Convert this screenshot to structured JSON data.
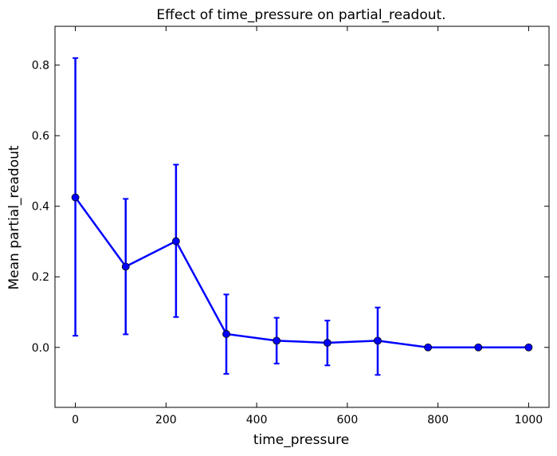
{
  "chart_data": {
    "type": "line",
    "title": "Effect of time_pressure on partial_readout.",
    "xlabel": "time_pressure",
    "ylabel": "Mean partial_readout",
    "xlim": [
      -45,
      1045
    ],
    "ylim": [
      -0.17,
      0.91
    ],
    "xticks": [
      0,
      200,
      400,
      600,
      800,
      1000
    ],
    "xtick_labels": [
      "0",
      "200",
      "400",
      "600",
      "800",
      "1000"
    ],
    "yticks": [
      0.0,
      0.2,
      0.4,
      0.6,
      0.8
    ],
    "ytick_labels": [
      "0.0",
      "0.2",
      "0.4",
      "0.6",
      "0.8"
    ],
    "grid": false,
    "series": [
      {
        "color": "#0000ff",
        "marker": "circle",
        "error_bars": true,
        "points": [
          {
            "x": 0,
            "y": 0.425,
            "err_low": 0.033,
            "err_high": 0.82
          },
          {
            "x": 111,
            "y": 0.229,
            "err_low": 0.037,
            "err_high": 0.421
          },
          {
            "x": 222,
            "y": 0.301,
            "err_low": 0.086,
            "err_high": 0.518
          },
          {
            "x": 333,
            "y": 0.038,
            "err_low": -0.075,
            "err_high": 0.15
          },
          {
            "x": 444,
            "y": 0.019,
            "err_low": -0.046,
            "err_high": 0.084
          },
          {
            "x": 556,
            "y": 0.013,
            "err_low": -0.051,
            "err_high": 0.076
          },
          {
            "x": 667,
            "y": 0.019,
            "err_low": -0.078,
            "err_high": 0.113
          },
          {
            "x": 778,
            "y": 0.0,
            "err_low": 0.0,
            "err_high": 0.0
          },
          {
            "x": 889,
            "y": 0.0,
            "err_low": 0.0,
            "err_high": 0.0
          },
          {
            "x": 1000,
            "y": 0.0,
            "err_low": 0.0,
            "err_high": 0.0
          }
        ]
      }
    ]
  }
}
